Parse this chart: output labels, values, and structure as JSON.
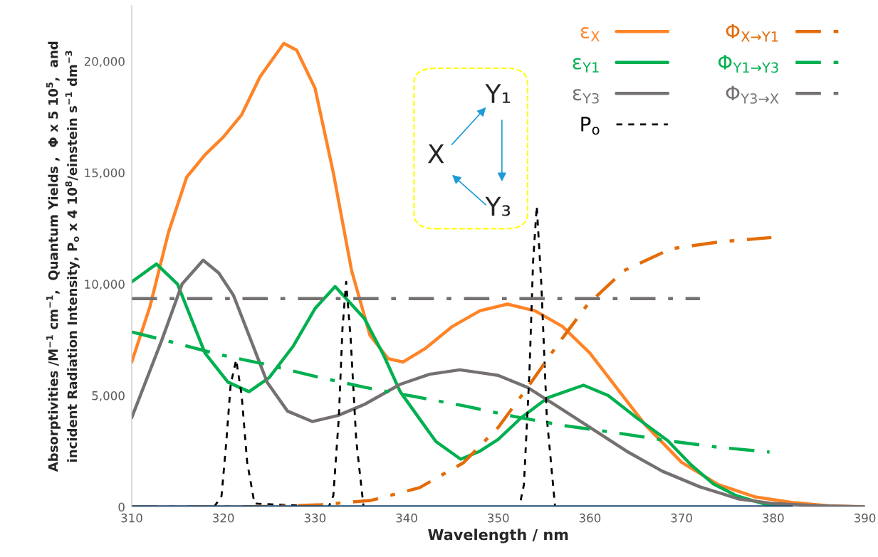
{
  "chart_data": {
    "type": "line",
    "xlabel": "Wavelength / nm",
    "ylabel": "Absorptivities /M$^{−1}$ cm$^{−1}$,  Quantum Yields ,  Φ x 5 10$^{5}$,  and\nincident Radiation Intensity, P$_{o}$ x 4 10$^{8}$/einstein s$^{−1}$ dm$^{−3}$",
    "xlim": [
      310,
      390
    ],
    "xticks": [
      310,
      320,
      330,
      340,
      350,
      360,
      370,
      380,
      390
    ],
    "ylim": [
      0,
      22500
    ],
    "yticks": [
      {
        "value": 0,
        "label": "0"
      },
      {
        "value": 5000,
        "label": "5,000"
      },
      {
        "value": 10000,
        "label": "10,000"
      },
      {
        "value": 15000,
        "label": "15,000"
      },
      {
        "value": 20000,
        "label": "20,000"
      }
    ],
    "grid": false,
    "legend": "top right",
    "marker": "none",
    "annotations": [
      "X",
      "Y₁",
      "Y₃"
    ],
    "series": [
      {
        "name": "ε$_{X}$",
        "color": "#ff8427",
        "line_style": "solid",
        "x": [
          310,
          312,
          314,
          316,
          318,
          320,
          322,
          324,
          326.6,
          328,
          330,
          332,
          334,
          336,
          338,
          339.6,
          342,
          345,
          348,
          351,
          354,
          357,
          360,
          363,
          366,
          370,
          374,
          378,
          382,
          386,
          390
        ],
        "values": [
          6500,
          9000,
          12300,
          14800,
          15800,
          16600,
          17600,
          19300,
          20800,
          20500,
          18800,
          15000,
          10600,
          7700,
          6650,
          6500,
          7100,
          8100,
          8800,
          9100,
          8800,
          8100,
          6900,
          5300,
          3700,
          2000,
          1000,
          450,
          200,
          50,
          0
        ]
      },
      {
        "name": "ε$_{Y1}$",
        "color": "#00b050",
        "line_style": "solid",
        "x": [
          310,
          312.7,
          315,
          318,
          320.5,
          322.8,
          325,
          327.6,
          330,
          332.2,
          335.4,
          337.5,
          339.3,
          341.5,
          343.2,
          345.9,
          348,
          350,
          352.5,
          355.4,
          359.3,
          362,
          365.1,
          368.5,
          371,
          373.5,
          376,
          379,
          382
        ],
        "values": [
          10100,
          10900,
          10000,
          6900,
          5600,
          5170,
          5800,
          7200,
          8900,
          9890,
          8450,
          6800,
          5170,
          3900,
          2930,
          2140,
          2500,
          3030,
          4000,
          4900,
          5460,
          5000,
          4000,
          2970,
          1900,
          1020,
          500,
          130,
          40
        ]
      },
      {
        "name": "ε$_{Y3}$",
        "color": "#767171",
        "line_style": "solid",
        "x": [
          310,
          313.3,
          315.5,
          317.8,
          319.5,
          321.1,
          324.8,
          327,
          329.7,
          332.5,
          335.4,
          339.3,
          342.5,
          345.8,
          348.4,
          350,
          353.2,
          356.5,
          360.1,
          364,
          367.9,
          372,
          376.3,
          380,
          385,
          390
        ],
        "values": [
          4000,
          7500,
          10000,
          11070,
          10500,
          9500,
          5580,
          4300,
          3830,
          4100,
          4600,
          5500,
          5950,
          6150,
          6000,
          5900,
          5360,
          4500,
          3540,
          2500,
          1600,
          900,
          350,
          150,
          50,
          0
        ]
      },
      {
        "name": "P$_{o}$",
        "color": "#000000",
        "line_style": "dashed",
        "x": [
          319,
          319.8,
          320.3,
          320.8,
          321.4,
          322,
          322.6,
          323.4,
          331.5,
          332.0,
          332.6,
          333.0,
          333.4,
          333.9,
          334.5,
          335.3,
          352.3,
          352.8,
          353.4,
          353.8,
          354.2,
          354.7,
          355.3,
          356.2
        ],
        "values": [
          0,
          480,
          2800,
          5500,
          6600,
          5000,
          2000,
          150,
          0,
          500,
          4000,
          8000,
          10100,
          7500,
          3000,
          0,
          0,
          1000,
          6000,
          11000,
          13500,
          10000,
          4000,
          0
        ]
      },
      {
        "name": "Φ$_{X→Y1}$",
        "color": "#e36c09",
        "line_style": "dashdot",
        "x": [
          310,
          320,
          326,
          330.7,
          336.1,
          341.4,
          346.2,
          350,
          353.2,
          356.4,
          359.7,
          363.7,
          368.8,
          374.2,
          379.8
        ],
        "values": [
          0,
          0,
          20,
          100,
          290,
          860,
          1980,
          3570,
          5360,
          7240,
          9060,
          10600,
          11580,
          11900,
          12090
        ]
      },
      {
        "name": "Φ$_{Y1→Y3}$",
        "color": "#00b050",
        "line_style": "dashdot",
        "x": [
          310,
          314.1,
          319.3,
          324.8,
          330.2,
          335.5,
          341,
          346.3,
          351.8,
          357.3,
          362.9,
          368.5,
          373.9,
          379.6
        ],
        "values": [
          7850,
          7430,
          6860,
          6380,
          5840,
          5360,
          4940,
          4530,
          4050,
          3640,
          3320,
          2970,
          2680,
          2460
        ]
      },
      {
        "name": "Φ$_{Y3→X}$",
        "color": "#767171",
        "line_style": "dashdot",
        "x": [
          310,
          372
        ],
        "values": [
          9350,
          9350
        ]
      },
      {
        "color": "#1f4e79",
        "line_style": "solid",
        "x": [
          310,
          382
        ],
        "values": [
          0,
          0
        ]
      }
    ]
  }
}
